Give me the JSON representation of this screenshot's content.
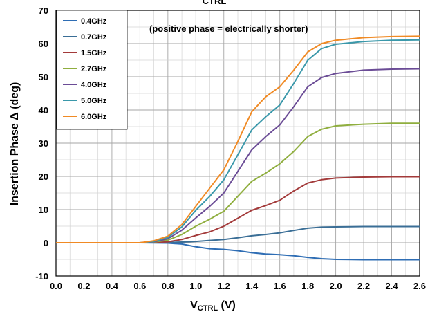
{
  "chart_data": {
    "type": "line",
    "title_fragment": "CTRL",
    "xlabel_main": "V",
    "xlabel_sub": "CTRL",
    "xlabel_unit": " (V)",
    "ylabel": "Insertion Phase Δ  (deg)",
    "annotation": "(positive phase = electrically shorter)",
    "xlim": [
      0.0,
      2.6
    ],
    "ylim": [
      -10,
      70
    ],
    "x_ticks": [
      "0.0",
      "0.2",
      "0.4",
      "0.6",
      "0.8",
      "1.0",
      "1.2",
      "1.4",
      "1.6",
      "1.8",
      "2.0",
      "2.2",
      "2.4",
      "2.6"
    ],
    "y_ticks": [
      "-10",
      "0",
      "10",
      "20",
      "30",
      "40",
      "50",
      "60",
      "70"
    ],
    "grid": true,
    "legend_position": "top-left",
    "series": [
      {
        "name": "0.4GHz",
        "color": "#2e6db4",
        "x": [
          0,
          0.6,
          0.8,
          0.9,
          1.0,
          1.1,
          1.2,
          1.3,
          1.4,
          1.5,
          1.6,
          1.7,
          1.8,
          1.9,
          2.0,
          2.2,
          2.4,
          2.6
        ],
        "y": [
          0,
          0,
          -0.1,
          -0.4,
          -1.2,
          -1.8,
          -2.0,
          -2.4,
          -3.0,
          -3.4,
          -3.6,
          -3.9,
          -4.4,
          -4.8,
          -5.0,
          -5.1,
          -5.1,
          -5.1
        ]
      },
      {
        "name": "0.7GHz",
        "color": "#3a6e96",
        "x": [
          0,
          0.6,
          0.8,
          0.9,
          1.0,
          1.1,
          1.2,
          1.3,
          1.4,
          1.5,
          1.6,
          1.7,
          1.8,
          1.9,
          2.0,
          2.2,
          2.4,
          2.6
        ],
        "y": [
          0,
          0,
          0.1,
          0.2,
          0.4,
          0.7,
          1.0,
          1.5,
          2.1,
          2.5,
          3.0,
          3.7,
          4.4,
          4.7,
          4.8,
          4.9,
          4.9,
          4.9
        ]
      },
      {
        "name": "1.5GHz",
        "color": "#a33a3a",
        "x": [
          0,
          0.6,
          0.7,
          0.8,
          0.9,
          1.0,
          1.1,
          1.2,
          1.3,
          1.4,
          1.5,
          1.6,
          1.7,
          1.8,
          1.9,
          2.0,
          2.2,
          2.4,
          2.6
        ],
        "y": [
          0,
          0,
          0.1,
          0.3,
          1.0,
          2.2,
          3.3,
          5.0,
          7.4,
          9.8,
          11.2,
          12.8,
          15.6,
          18.0,
          19.0,
          19.5,
          19.8,
          19.9,
          19.9
        ]
      },
      {
        "name": "2.7GHz",
        "color": "#8fae3e",
        "x": [
          0,
          0.6,
          0.7,
          0.8,
          0.9,
          1.0,
          1.1,
          1.2,
          1.3,
          1.4,
          1.5,
          1.6,
          1.7,
          1.8,
          1.9,
          2.0,
          2.2,
          2.4,
          2.6
        ],
        "y": [
          0,
          0,
          0.2,
          0.8,
          2.5,
          5.0,
          7.1,
          9.5,
          14.0,
          18.5,
          21.0,
          23.8,
          27.5,
          32.0,
          34.2,
          35.2,
          35.7,
          36.0,
          36.0
        ]
      },
      {
        "name": "4.0GHz",
        "color": "#6b4c96",
        "x": [
          0,
          0.6,
          0.7,
          0.8,
          0.9,
          1.0,
          1.1,
          1.2,
          1.3,
          1.4,
          1.5,
          1.6,
          1.7,
          1.8,
          1.9,
          2.0,
          2.2,
          2.4,
          2.6
        ],
        "y": [
          0,
          0,
          0.3,
          1.2,
          3.8,
          7.5,
          11.0,
          15.0,
          21.5,
          28.0,
          32.0,
          35.5,
          41.0,
          47.0,
          49.8,
          51.0,
          52.0,
          52.3,
          52.4
        ]
      },
      {
        "name": "5.0GHz",
        "color": "#3a98aa",
        "x": [
          0,
          0.6,
          0.7,
          0.8,
          0.9,
          1.0,
          1.1,
          1.2,
          1.3,
          1.4,
          1.5,
          1.6,
          1.7,
          1.8,
          1.9,
          2.0,
          2.2,
          2.4,
          2.6
        ],
        "y": [
          0,
          0,
          0.4,
          1.6,
          4.8,
          9.8,
          14.0,
          19.0,
          26.5,
          34.0,
          38.0,
          41.5,
          48.0,
          55.0,
          58.5,
          59.8,
          60.6,
          61.0,
          61.1
        ]
      },
      {
        "name": "6.0GHz",
        "color": "#f08a24",
        "x": [
          0,
          0.6,
          0.7,
          0.8,
          0.9,
          1.0,
          1.1,
          1.2,
          1.3,
          1.4,
          1.5,
          1.6,
          1.7,
          1.8,
          1.9,
          2.0,
          2.2,
          2.4,
          2.6
        ],
        "y": [
          0,
          0,
          0.6,
          2.0,
          5.5,
          11.0,
          16.5,
          22.0,
          30.5,
          39.5,
          44.0,
          47.0,
          52.0,
          57.5,
          60.0,
          61.0,
          61.8,
          62.1,
          62.2
        ]
      }
    ]
  }
}
